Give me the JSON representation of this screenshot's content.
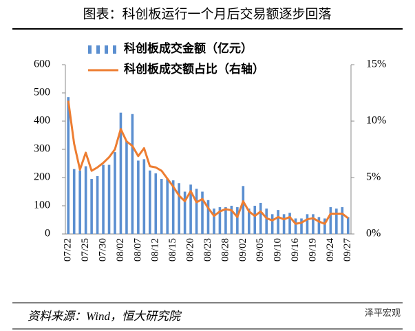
{
  "chart_data": {
    "type": "bar_line",
    "title": "图表：科创板运行一个月后交易额逐步回落",
    "source": "资料来源：Wind，恒大研究院",
    "watermark": "泽平宏观",
    "categories": [
      "07/22",
      null,
      null,
      "07/25",
      null,
      null,
      "07/30",
      null,
      null,
      "08/02",
      null,
      null,
      "08/07",
      null,
      null,
      "08/12",
      null,
      null,
      "08/15",
      null,
      null,
      "08/20",
      null,
      null,
      "08/23",
      null,
      null,
      "08/28",
      null,
      null,
      "09/02",
      null,
      null,
      "09/05",
      null,
      null,
      "09/10",
      null,
      null,
      "09/16",
      null,
      null,
      "09/19",
      null,
      null,
      "09/24",
      null,
      null,
      "09/27"
    ],
    "series": [
      {
        "name": "科创板成交金额（亿元）",
        "color": "#5b8fd0",
        "type": "bar",
        "values": [
          485,
          230,
          225,
          240,
          195,
          205,
          245,
          245,
          290,
          430,
          330,
          425,
          260,
          265,
          225,
          215,
          195,
          195,
          190,
          180,
          150,
          175,
          160,
          150,
          120,
          90,
          95,
          95,
          100,
          95,
          170,
          90,
          100,
          110,
          90,
          70,
          85,
          70,
          75,
          55,
          55,
          70,
          70,
          60,
          55,
          95,
          90,
          95,
          60
        ]
      },
      {
        "name": "科创板成交额占比（右轴）",
        "color": "#ed7d31",
        "type": "line",
        "axis": "y2",
        "values": [
          11.8,
          8,
          5.7,
          7.2,
          5.6,
          5.9,
          6.3,
          6.8,
          7.5,
          9.3,
          8.2,
          7.8,
          6.9,
          7.6,
          6,
          5.9,
          5.6,
          4.9,
          4.2,
          3.4,
          2.9,
          3.8,
          2.8,
          3.1,
          2.3,
          1.6,
          2,
          2.2,
          2.1,
          1.5,
          2.9,
          2,
          1.6,
          2,
          1.4,
          1.2,
          1.5,
          1.3,
          1.5,
          0.9,
          1,
          1.3,
          1.4,
          1.1,
          0.9,
          1.8,
          1.8,
          1.8,
          1.4
        ]
      }
    ],
    "ylim": [
      0,
      600
    ],
    "yticks": [
      0,
      100,
      200,
      300,
      400,
      500,
      600
    ],
    "y2lim": [
      0,
      15
    ],
    "y2ticks": [
      {
        "value": 0,
        "label": "0%"
      },
      {
        "value": 5,
        "label": "5%"
      },
      {
        "value": 10,
        "label": "10%"
      },
      {
        "value": 15,
        "label": "15%"
      }
    ]
  }
}
